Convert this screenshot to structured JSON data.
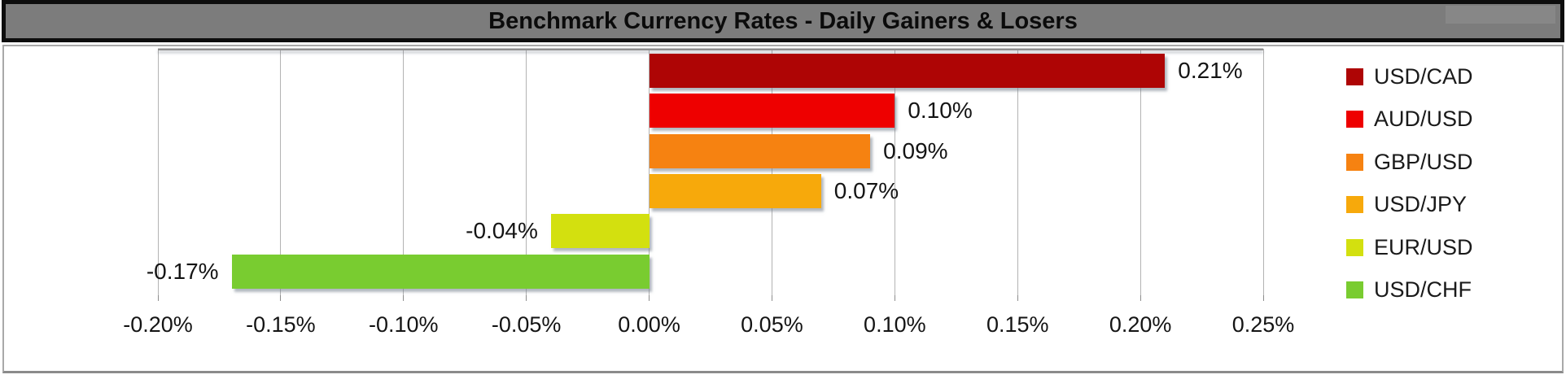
{
  "title_bar": {
    "title": "Benchmark Currency Rates - Daily Gainers & Losers"
  },
  "chart_data": {
    "type": "bar",
    "orientation": "horizontal",
    "title": "Benchmark Currency Rates - Daily Gainers & Losers",
    "categories": [
      "USD/CAD",
      "AUD/USD",
      "GBP/USD",
      "USD/JPY",
      "EUR/USD",
      "USD/CHF"
    ],
    "values": [
      0.21,
      0.1,
      0.09,
      0.07,
      -0.04,
      -0.17
    ],
    "value_labels": [
      "0.21%",
      "0.10%",
      "0.09%",
      "0.07%",
      "-0.04%",
      "-0.17%"
    ],
    "bar_colors": [
      "#AE0505",
      "#EE0000",
      "#F68211",
      "#F7A90B",
      "#D3E00F",
      "#79CC30"
    ],
    "unit": "%",
    "xlim": [
      -0.2,
      0.25
    ],
    "x_tick_values": [
      -0.2,
      -0.15,
      -0.1,
      -0.05,
      0.0,
      0.05,
      0.1,
      0.15,
      0.2,
      0.25
    ],
    "x_tick_labels": [
      "-0.20%",
      "-0.15%",
      "-0.10%",
      "-0.05%",
      "0.00%",
      "0.05%",
      "0.10%",
      "0.15%",
      "0.20%",
      "0.25%"
    ],
    "grid": "vertical-gridlines-on",
    "legend_position": "right",
    "legend_labels": [
      "USD/CAD",
      "AUD/USD",
      "GBP/USD",
      "USD/JPY",
      "EUR/USD",
      "USD/CHF"
    ]
  }
}
